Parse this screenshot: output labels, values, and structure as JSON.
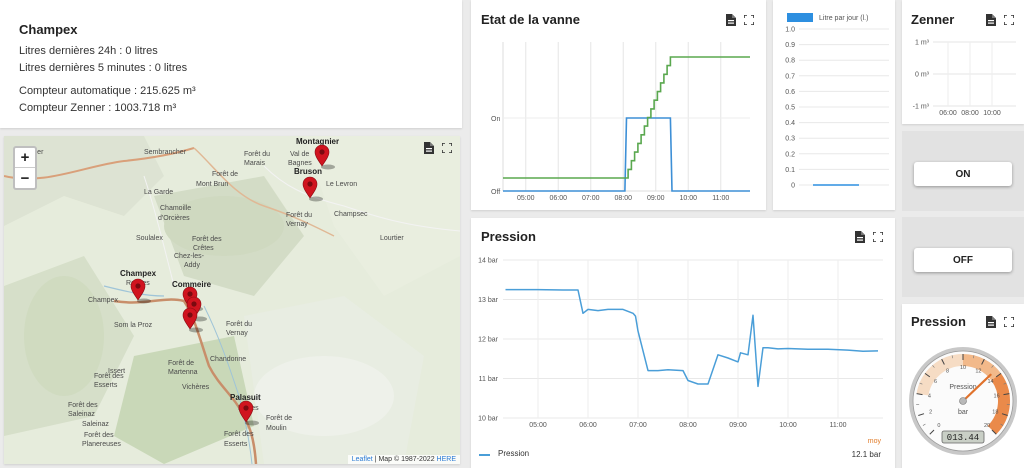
{
  "info": {
    "title": "Champex",
    "line1": "Litres dernières 24h : 0 litres",
    "line2": "Litres dernières 5 minutes : 0 litres",
    "line3": "Compteur automatique : 215.625 m³",
    "line4": "Compteur Zenner : 1003.718 m³"
  },
  "map": {
    "zoom_in": "+",
    "zoom_out": "−",
    "attribution_link1": "Leaflet",
    "attribution_text": "| Map © 1987-2022",
    "attribution_link2": "HERE",
    "labels": [
      {
        "text": "yernier",
        "bold": false
      },
      {
        "text": "Sembrancher",
        "bold": false
      },
      {
        "text": "Montagnier",
        "bold": true
      },
      {
        "text": "Val de",
        "bold": false
      },
      {
        "text": "Bagnes",
        "bold": false
      },
      {
        "text": "Forêt du",
        "bold": false
      },
      {
        "text": "Marais",
        "bold": false
      },
      {
        "text": "Bruson",
        "bold": true
      },
      {
        "text": "Le Levron",
        "bold": false
      },
      {
        "text": "Forêt de",
        "bold": false
      },
      {
        "text": "Mont Brun",
        "bold": false
      },
      {
        "text": "La Garde",
        "bold": false
      },
      {
        "text": "Champsec",
        "bold": false
      },
      {
        "text": "Chamoille",
        "bold": false
      },
      {
        "text": "d'Orcières",
        "bold": false
      },
      {
        "text": "Forêt du",
        "bold": false
      },
      {
        "text": "Vernay",
        "bold": false
      },
      {
        "text": "Lourtier",
        "bold": false
      },
      {
        "text": "Soulalex",
        "bold": false
      },
      {
        "text": "Forêt des",
        "bold": false
      },
      {
        "text": "Crêtes",
        "bold": false
      },
      {
        "text": "Chez-les-",
        "bold": false
      },
      {
        "text": "Addy",
        "bold": false
      },
      {
        "text": "Champex",
        "bold": true
      },
      {
        "text": "Reuses",
        "bold": false
      },
      {
        "text": "Commeire",
        "bold": true
      },
      {
        "text": "Champex",
        "bold": false
      },
      {
        "text": "Som la Proz",
        "bold": false
      },
      {
        "text": "Forêt du",
        "bold": false
      },
      {
        "text": "Vernay",
        "bold": false
      },
      {
        "text": "Chandonne",
        "bold": false
      },
      {
        "text": "Issert",
        "bold": false
      },
      {
        "text": "Forêt de",
        "bold": false
      },
      {
        "text": "Martenna",
        "bold": false
      },
      {
        "text": "Vichères",
        "bold": false
      },
      {
        "text": "Forêt des",
        "bold": false
      },
      {
        "text": "Esserts",
        "bold": false
      },
      {
        "text": "Palasuit",
        "bold": true
      },
      {
        "text": "Liddes",
        "bold": false
      },
      {
        "text": "Forêt de",
        "bold": false
      },
      {
        "text": "Moulin",
        "bold": false
      },
      {
        "text": "Saleinaz",
        "bold": false
      },
      {
        "text": "Forêt des",
        "bold": false
      },
      {
        "text": "Planereuses",
        "bold": false
      },
      {
        "text": "Forêt des",
        "bold": false
      },
      {
        "text": "Saleinaz",
        "bold": false
      },
      {
        "text": "Forêt des",
        "bold": false
      },
      {
        "text": "Esserts",
        "bold": false
      }
    ]
  },
  "vanne": {
    "title": "Etat de la vanne",
    "y_labels": [
      "On",
      "Off"
    ],
    "x_labels": [
      "05:00",
      "06:00",
      "07:00",
      "08:00",
      "09:00",
      "10:00",
      "11:00"
    ],
    "colors": {
      "state": "#3d8fd6",
      "cumulative": "#5aa84f"
    }
  },
  "litre": {
    "legend": "Litre par jour (l.)",
    "y_labels": [
      "1.0",
      "0.9",
      "0.8",
      "0.7",
      "0.6",
      "0.5",
      "0.4",
      "0.3",
      "0.2",
      "0.1",
      "0"
    ],
    "color": "#2d8fe0"
  },
  "zenner": {
    "title": "Zenner",
    "y_labels": [
      "1 m³",
      "0 m³",
      "-1 m³"
    ],
    "x_labels": [
      "06:00",
      "08:00",
      "10:00"
    ]
  },
  "buttons": {
    "on": "ON",
    "off": "OFF"
  },
  "pression_chart": {
    "title": "Pression",
    "legend_series": "Pression",
    "legend_stat_label": "moy",
    "legend_stat_value": "12.1 bar",
    "color": "#4a9ed8"
  },
  "gauge": {
    "title": "Pression",
    "label": "Pression",
    "unit": "bar",
    "readout": "013.44",
    "ticks": [
      "0",
      "2",
      "4",
      "6",
      "8",
      "10",
      "12",
      "14",
      "16",
      "18",
      "20"
    ]
  },
  "chart_data": [
    {
      "type": "line",
      "title": "Pression",
      "ylim": [
        10,
        14
      ],
      "y_ticks": [
        "14 bar",
        "13 bar",
        "12 bar",
        "11 bar",
        "10 bar"
      ],
      "x_ticks": [
        "05:00",
        "06:00",
        "07:00",
        "08:00",
        "09:00",
        "10:00",
        "11:00"
      ],
      "series": [
        {
          "name": "Pression",
          "x": [
            4.35,
            5.0,
            5.5,
            5.8,
            5.9,
            6.0,
            6.2,
            6.4,
            6.7,
            6.9,
            6.95,
            7.0,
            7.2,
            7.4,
            7.6,
            7.9,
            8.0,
            8.2,
            8.4,
            8.6,
            8.8,
            9.0,
            9.05,
            9.2,
            9.3,
            9.4,
            9.5,
            9.6,
            9.8,
            10.0,
            10.4,
            10.8,
            11.2,
            11.5,
            11.8
          ],
          "y": [
            13.25,
            13.25,
            13.24,
            13.24,
            12.65,
            12.75,
            12.72,
            12.75,
            12.75,
            12.65,
            12.58,
            12.2,
            11.2,
            11.2,
            11.22,
            11.2,
            10.95,
            10.86,
            10.86,
            11.6,
            11.52,
            11.42,
            11.65,
            11.6,
            12.6,
            10.8,
            11.78,
            11.78,
            11.75,
            11.76,
            11.74,
            11.74,
            11.72,
            11.69,
            11.7
          ]
        }
      ]
    },
    {
      "type": "line",
      "title": "Etat de la vanne",
      "x_ticks": [
        "05:00",
        "06:00",
        "07:00",
        "08:00",
        "09:00",
        "10:00",
        "11:00"
      ],
      "series": [
        {
          "x": [
            4.3,
            8.05,
            8.1,
            9.45,
            9.5,
            11.9
          ],
          "y": [
            0,
            0,
            1,
            1,
            0,
            0
          ]
        }
      ]
    },
    {
      "type": "bar",
      "legend": "Litre par jour (l.)",
      "ylim": [
        0,
        1
      ],
      "series": [
        {
          "name": "Litre par jour (l.)",
          "values": [
            0
          ]
        }
      ]
    },
    {
      "type": "gauge",
      "title": "Pression",
      "range": [
        0,
        20
      ],
      "value": 13.44,
      "unit": "bar"
    }
  ]
}
